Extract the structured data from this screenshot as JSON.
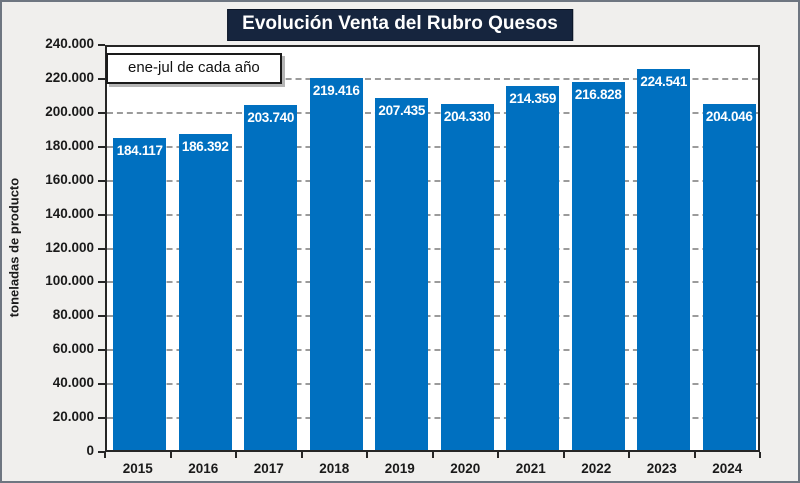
{
  "chart": {
    "title": "Evolución Venta del Rubro Quesos",
    "annotation": "ene-jul de cada año",
    "y_axis_title": "toneladas de producto"
  },
  "chart_data": {
    "type": "bar",
    "title": "Evolución Venta del Rubro Quesos",
    "annotation": "ene-jul de cada año",
    "categories": [
      "2015",
      "2016",
      "2017",
      "2018",
      "2019",
      "2020",
      "2021",
      "2022",
      "2023",
      "2024"
    ],
    "values": [
      184117,
      186392,
      203740,
      219416,
      207435,
      204330,
      214359,
      216828,
      224541,
      204046
    ],
    "value_labels": [
      "184.117",
      "186.392",
      "203.740",
      "219.416",
      "207.435",
      "204.330",
      "214.359",
      "216.828",
      "224.541",
      "204.046"
    ],
    "xlabel": "",
    "ylabel": "toneladas de producto",
    "ylim": [
      0,
      240000
    ],
    "y_tick_step": 20000,
    "y_tick_labels": [
      "0",
      "20.000",
      "40.000",
      "60.000",
      "80.000",
      "100.000",
      "120.000",
      "140.000",
      "160.000",
      "180.000",
      "200.000",
      "220.000",
      "240.000"
    ],
    "grid": "horizontal-dashed",
    "legend": "none",
    "bar_color": "#0070c0",
    "value_label_position": "inside-end",
    "value_label_color": "#ffffff"
  }
}
